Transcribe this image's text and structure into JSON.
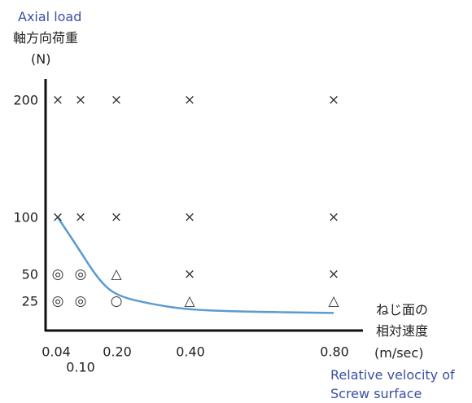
{
  "colors": {
    "axis": "#111111",
    "curve": "#5b9bd0",
    "blue_text": "#3a4fa3",
    "dark_text": "#222222"
  },
  "chart_data": {
    "type": "scatter",
    "y_label_en": "Axial load",
    "y_label_jp": "軸方向荷重",
    "y_unit": "(N)",
    "x_label_jp_line1": "ねじ面の",
    "x_label_jp_line2": "相対速度",
    "x_unit": "(m/sec)",
    "x_label_en_line1": "Relative velocity of",
    "x_label_en_line2": "Screw surface",
    "x_ticks": [
      {
        "value": 0.04,
        "label": "0.04"
      },
      {
        "value": 0.1,
        "label": "0.10"
      },
      {
        "value": 0.2,
        "label": "0.20"
      },
      {
        "value": 0.4,
        "label": "0.40"
      },
      {
        "value": 0.8,
        "label": "0.80"
      }
    ],
    "y_ticks": [
      {
        "value": 25,
        "label": "25"
      },
      {
        "value": 50,
        "label": "50"
      },
      {
        "value": 100,
        "label": "100"
      },
      {
        "value": 200,
        "label": "200"
      }
    ],
    "marks": [
      {
        "x": 0.04,
        "y": 200,
        "symbol": "×"
      },
      {
        "x": 0.1,
        "y": 200,
        "symbol": "×"
      },
      {
        "x": 0.2,
        "y": 200,
        "symbol": "×"
      },
      {
        "x": 0.4,
        "y": 200,
        "symbol": "×"
      },
      {
        "x": 0.8,
        "y": 200,
        "symbol": "×"
      },
      {
        "x": 0.04,
        "y": 100,
        "symbol": "×"
      },
      {
        "x": 0.1,
        "y": 100,
        "symbol": "×"
      },
      {
        "x": 0.2,
        "y": 100,
        "symbol": "×"
      },
      {
        "x": 0.4,
        "y": 100,
        "symbol": "×"
      },
      {
        "x": 0.8,
        "y": 100,
        "symbol": "×"
      },
      {
        "x": 0.04,
        "y": 50,
        "symbol": "◎"
      },
      {
        "x": 0.1,
        "y": 50,
        "symbol": "◎"
      },
      {
        "x": 0.2,
        "y": 50,
        "symbol": "△"
      },
      {
        "x": 0.4,
        "y": 50,
        "symbol": "×"
      },
      {
        "x": 0.8,
        "y": 50,
        "symbol": "×"
      },
      {
        "x": 0.04,
        "y": 25,
        "symbol": "◎"
      },
      {
        "x": 0.1,
        "y": 25,
        "symbol": "◎"
      },
      {
        "x": 0.2,
        "y": 25,
        "symbol": "○"
      },
      {
        "x": 0.4,
        "y": 25,
        "symbol": "△"
      },
      {
        "x": 0.8,
        "y": 25,
        "symbol": "△"
      }
    ],
    "limit_curve": [
      {
        "x": 0.04,
        "y": 100
      },
      {
        "x": 0.09,
        "y": 75
      },
      {
        "x": 0.15,
        "y": 45
      },
      {
        "x": 0.2,
        "y": 30
      },
      {
        "x": 0.3,
        "y": 20
      },
      {
        "x": 0.4,
        "y": 12
      },
      {
        "x": 0.55,
        "y": 9
      },
      {
        "x": 0.8,
        "y": 7
      }
    ],
    "grid": false
  }
}
